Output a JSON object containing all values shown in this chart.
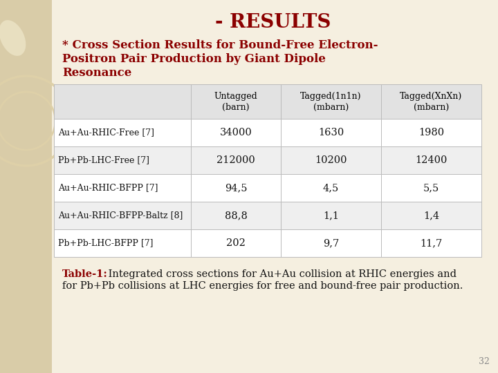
{
  "title": "- RESULTS",
  "subtitle_line1": "* Cross Section Results for Bound-Free Electron-",
  "subtitle_line2": "Positron Pair Production by Giant Dipole",
  "subtitle_line3": "Resonance",
  "col_headers": [
    "",
    "Untagged\n(barn)",
    "Tagged(1n1n)\n(mbarn)",
    "Tagged(XnXn)\n(mbarn)"
  ],
  "rows": [
    [
      "Au+Au-RHIC-Free [7]",
      "34000",
      "1630",
      "1980"
    ],
    [
      "Pb+Pb-LHC-Free [7]",
      "212000",
      "10200",
      "12400"
    ],
    [
      "Au+Au-RHIC-BFPP [7]",
      "94,5",
      "4,5",
      "5,5"
    ],
    [
      "Au+Au-RHIC-BFPP-Baltz [8]",
      "88,8",
      "1,1",
      "1,4"
    ],
    [
      "Pb+Pb-LHC-BFPP [7]",
      "202",
      "9,7",
      "11,7"
    ]
  ],
  "caption_bold": "Table-1:",
  "caption_rest": " Integrated cross sections for Au+Au collision at RHIC energies and",
  "caption_line2": "for Pb+Pb collisions at LHC energies for free and bound-free pair production.",
  "page_number": "32",
  "bg_color": "#f5efe0",
  "left_panel_color": "#d9cca8",
  "title_color": "#8b0000",
  "subtitle_color": "#8b0000",
  "table_header_bg": "#e2e2e2",
  "table_row_bg_odd": "#ffffff",
  "table_row_bg_even": "#efefef",
  "table_border_color": "#bbbbbb",
  "caption_color": "#8b0000",
  "caption_text_color": "#111111",
  "page_num_color": "#888888",
  "decor_color": "#e8dfc0",
  "decor_line_color": "#ded0a8"
}
